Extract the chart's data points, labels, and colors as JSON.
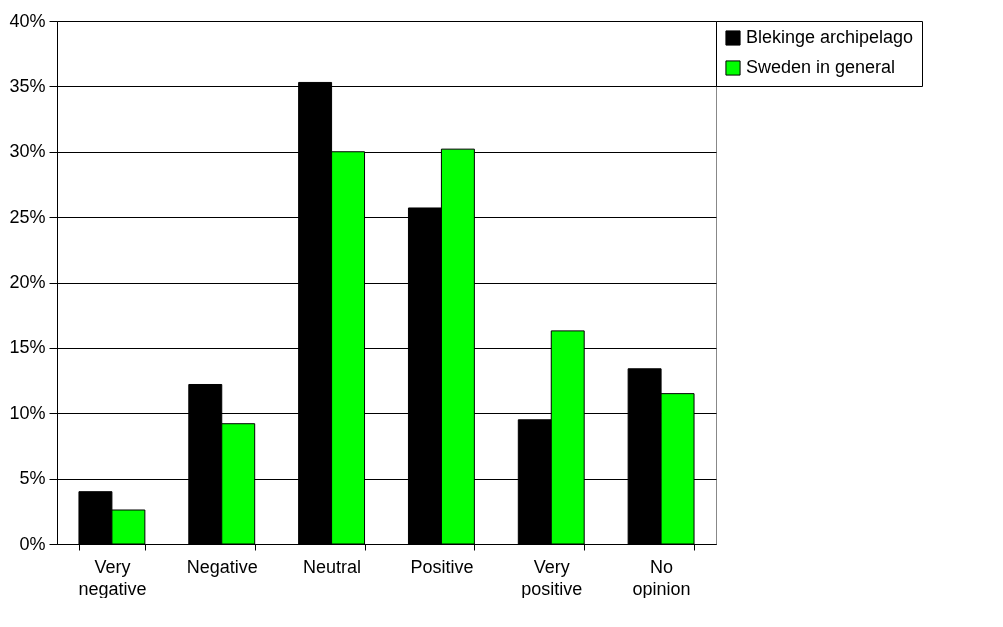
{
  "chart_data": {
    "type": "bar",
    "categories": [
      "Very negative",
      "Negative",
      "Neutral",
      "Positive",
      "Very positive",
      "No opinion"
    ],
    "series": [
      {
        "name": "Blekinge archipelago",
        "color": "#000000",
        "values": [
          4.0,
          12.2,
          35.3,
          25.7,
          9.5,
          13.4
        ]
      },
      {
        "name": "Sweden in general",
        "color": "#00ff00",
        "values": [
          2.6,
          9.2,
          30.0,
          30.2,
          16.3,
          11.5
        ]
      }
    ],
    "ylim": [
      0,
      40
    ],
    "yticks": [
      {
        "value": 0,
        "label": "0%"
      },
      {
        "value": 5,
        "label": "5%"
      },
      {
        "value": 10,
        "label": "10%"
      },
      {
        "value": 15,
        "label": "15%"
      },
      {
        "value": 20,
        "label": "20%"
      },
      {
        "value": 25,
        "label": "25%"
      },
      {
        "value": 30,
        "label": "30%"
      },
      {
        "value": 35,
        "label": "35%"
      },
      {
        "value": 40,
        "label": "40%"
      }
    ],
    "grid": "y",
    "legend": "top right"
  }
}
